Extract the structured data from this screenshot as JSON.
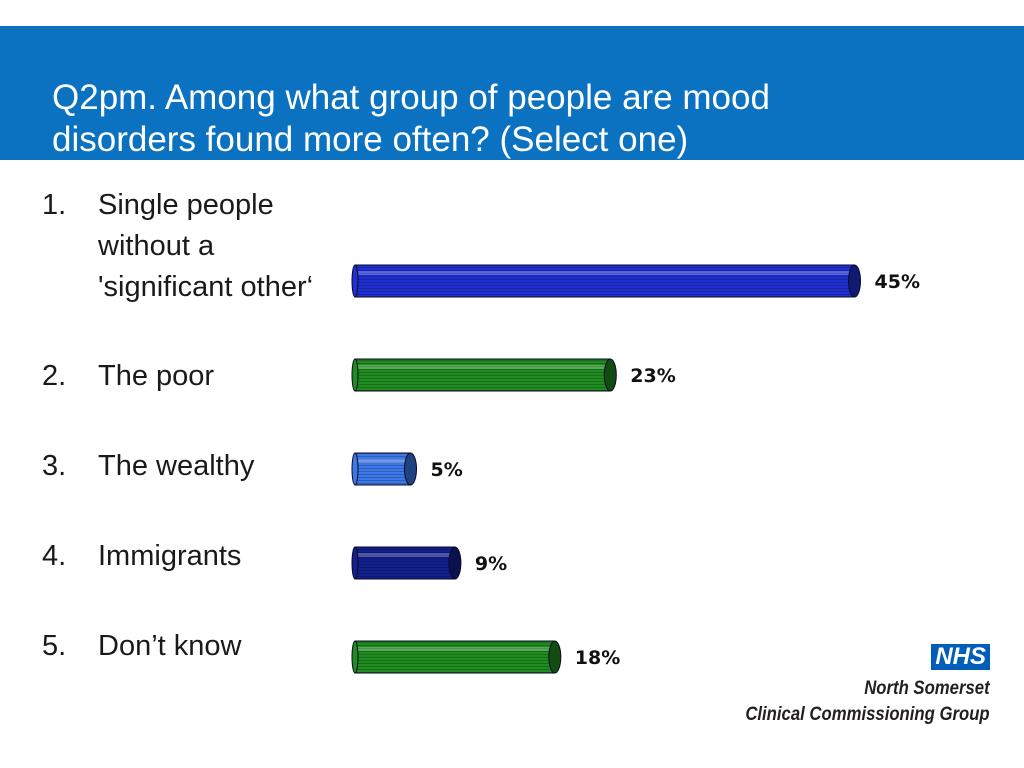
{
  "header": {
    "title_line1": "Q2pm. Among what group of people are mood",
    "title_line2": "disorders found more often? (Select one)",
    "background_color": "#0a72c0"
  },
  "options": [
    {
      "number": "1.",
      "label_lines": [
        "Single people",
        "without a",
        "'significant other‘"
      ]
    },
    {
      "number": "2.",
      "label_lines": [
        "The poor"
      ]
    },
    {
      "number": "3.",
      "label_lines": [
        "The wealthy"
      ]
    },
    {
      "number": "4.",
      "label_lines": [
        "Immigrants"
      ]
    },
    {
      "number": "5.",
      "label_lines": [
        "Don’t know"
      ]
    }
  ],
  "chart_data": {
    "type": "bar",
    "orientation": "horizontal",
    "categories": [
      "Single people without a 'significant other‘",
      "The poor",
      "The wealthy",
      "Immigrants",
      "Don’t know"
    ],
    "values": [
      45,
      23,
      5,
      9,
      18
    ],
    "labels": [
      "45%",
      "23%",
      "5%",
      "9%",
      "18%"
    ],
    "unit": "%",
    "colors": [
      "#1f2fd0",
      "#1f8c1f",
      "#3c78e8",
      "#121f8c",
      "#1f8c1f"
    ],
    "grid": false,
    "legend": "none"
  },
  "logo": {
    "badge": "NHS",
    "line1": "North Somerset",
    "line2": "Clinical Commissioning Group",
    "badge_color": "#005eb8"
  }
}
